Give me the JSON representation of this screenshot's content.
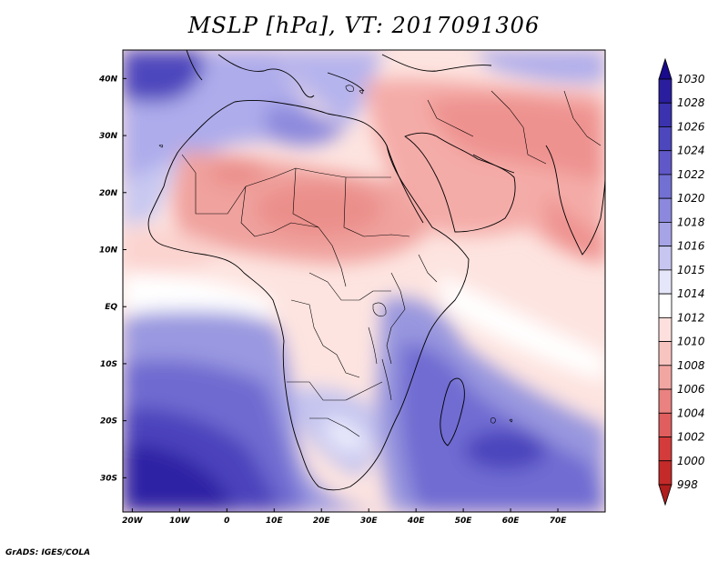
{
  "title": "MSLP [hPa], VT: 2017091306",
  "credit": "GrADS: IGES/COLA",
  "axes": {
    "lon_ticks": [
      "20W",
      "10W",
      "0",
      "10E",
      "20E",
      "30E",
      "40E",
      "50E",
      "60E",
      "70E"
    ],
    "lat_ticks": [
      "40N",
      "30N",
      "20N",
      "10N",
      "EQ",
      "10S",
      "20S",
      "30S"
    ]
  },
  "colorbar": {
    "levels": [
      "1030",
      "1028",
      "1026",
      "1024",
      "1022",
      "1020",
      "1018",
      "1016",
      "1015",
      "1014",
      "1012",
      "1010",
      "1008",
      "1006",
      "1004",
      "1002",
      "1000",
      "998"
    ],
    "colors": [
      "#1a0a8c",
      "#2a1e9e",
      "#3a32ae",
      "#4d47bd",
      "#6058c8",
      "#7370d3",
      "#8b88dd",
      "#a6a4e6",
      "#c6c6f0",
      "#e6e6fa",
      "#ffffff",
      "#fde0dd",
      "#f8c4c0",
      "#f2a6a2",
      "#e98280",
      "#e05e5e",
      "#d43b3b",
      "#c42a2a",
      "#b01e1e"
    ]
  }
}
